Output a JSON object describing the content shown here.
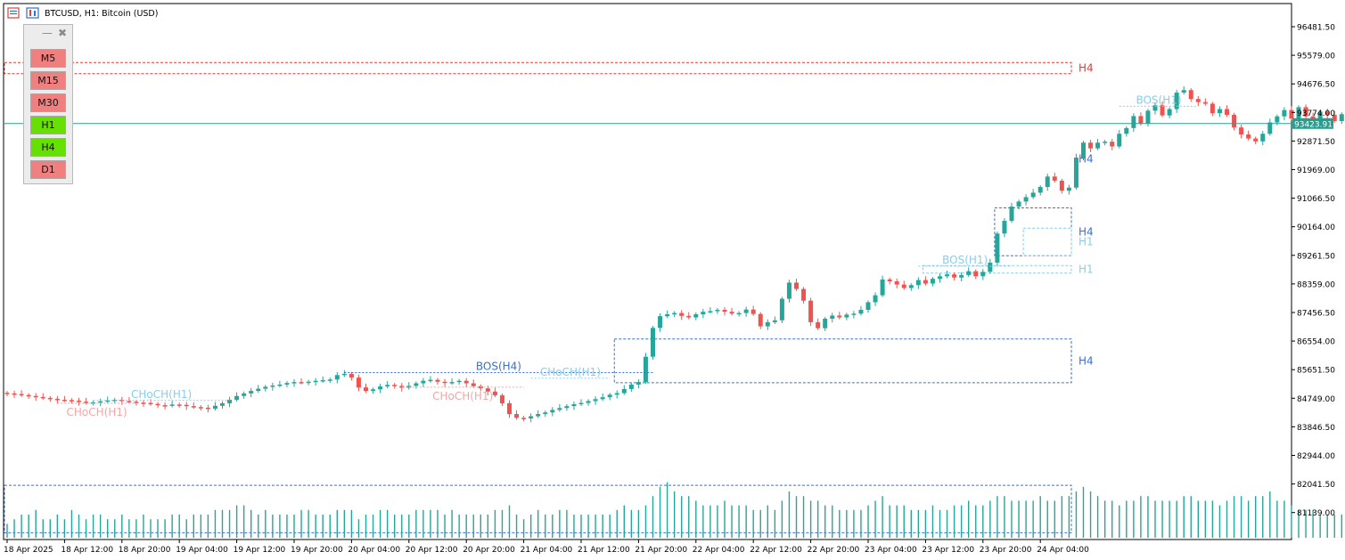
{
  "header": {
    "symbol_line": "BTCUSD, H1:  Bitcoin (USD)"
  },
  "tf_panel": {
    "minimize_glyph": "—",
    "close_glyph": "✖",
    "buttons": [
      {
        "label": "M5",
        "state": "off"
      },
      {
        "label": "M15",
        "state": "off"
      },
      {
        "label": "M30",
        "state": "off"
      },
      {
        "label": "H1",
        "state": "on"
      },
      {
        "label": "H4",
        "state": "on"
      },
      {
        "label": "D1",
        "state": "off"
      }
    ]
  },
  "colors": {
    "bull": "#26a69a",
    "bear": "#ef5350",
    "tf_on": "#66e000",
    "tf_off": "#f08080",
    "h4_zone": "#3a6fd8",
    "h1_zone": "#87ceeb",
    "supply_zone": "#e53935",
    "bid_line": "#2a9d8f",
    "choch_h1_bull": "#87ceeb",
    "choch_h1_bear": "#f4a6a6",
    "bos_h4": "#3a6fd8"
  },
  "current_price": "93423.91",
  "chart_data": {
    "type": "candlestick",
    "title": "BTCUSD, H1:  Bitcoin (USD)",
    "y_ticks": [
      "96481.50",
      "95579.00",
      "94676.50",
      "93774.00",
      "92871.50",
      "91969.00",
      "91066.50",
      "90164.00",
      "89261.50",
      "88359.00",
      "87456.50",
      "86554.00",
      "85651.50",
      "84749.00",
      "83846.50",
      "82944.00",
      "82041.50",
      "81139.00"
    ],
    "x_ticks": [
      "18 Apr 2025",
      "18 Apr 12:00",
      "18 Apr 20:00",
      "19 Apr 04:00",
      "19 Apr 12:00",
      "19 Apr 20:00",
      "20 Apr 04:00",
      "20 Apr 12:00",
      "20 Apr 20:00",
      "21 Apr 04:00",
      "21 Apr 12:00",
      "21 Apr 20:00",
      "22 Apr 04:00",
      "22 Apr 12:00",
      "22 Apr 20:00",
      "23 Apr 04:00",
      "23 Apr 12:00",
      "23 Apr 20:00",
      "24 Apr 04:00"
    ],
    "y_range": [
      80500,
      96900
    ],
    "x_step_hours": 1,
    "close_series": [
      84900,
      84880,
      84850,
      84820,
      84790,
      84760,
      84730,
      84700,
      84690,
      84670,
      84640,
      84610,
      84620,
      84650,
      84680,
      84700,
      84660,
      84640,
      84610,
      84600,
      84570,
      84530,
      84520,
      84550,
      84540,
      84500,
      84470,
      84450,
      84420,
      84510,
      84590,
      84700,
      84820,
      84900,
      84980,
      85050,
      85110,
      85150,
      85180,
      85230,
      85260,
      85250,
      85270,
      85300,
      85320,
      85340,
      85480,
      85520,
      85400,
      85090,
      84980,
      85030,
      85120,
      85170,
      85140,
      85080,
      85140,
      85220,
      85300,
      85330,
      85270,
      85230,
      85260,
      85300,
      85220,
      85130,
      85060,
      84960,
      84840,
      84590,
      84250,
      84130,
      84110,
      84180,
      84250,
      84300,
      84380,
      84440,
      84500,
      84560,
      84600,
      84660,
      84720,
      84780,
      84860,
      84910,
      85040,
      85180,
      85260,
      86060,
      86970,
      87340,
      87400,
      87440,
      87350,
      87300,
      87400,
      87480,
      87500,
      87540,
      87480,
      87420,
      87440,
      87550,
      87410,
      87020,
      87150,
      87210,
      87890,
      88400,
      88200,
      87830,
      87150,
      86960,
      87260,
      87360,
      87300,
      87390,
      87420,
      87540,
      87780,
      88000,
      88500,
      88440,
      88340,
      88230,
      88320,
      88480,
      88370,
      88520,
      88600,
      88660,
      88560,
      88640,
      88760,
      88600,
      88740,
      89030,
      89950,
      90350,
      90800,
      90960,
      91100,
      91240,
      91420,
      91750,
      91620,
      91300,
      91400,
      92350,
      92820,
      92640,
      92820,
      92850,
      92700,
      93100,
      93280,
      93660,
      93420,
      93830,
      94000,
      93680,
      93880,
      94400,
      94480,
      94200,
      94100,
      94050,
      93750,
      93880,
      93700,
      93300,
      93080,
      92950,
      92860,
      93100,
      93460,
      93650,
      93850,
      93580,
      93940,
      93650,
      93530,
      93800,
      93700,
      93500,
      93720,
      93650,
      93450,
      93520,
      93423.91
    ],
    "volume_series": [
      3,
      4,
      5,
      5,
      6,
      4,
      4,
      5,
      4,
      6,
      5,
      4,
      5,
      5,
      4,
      4,
      5,
      4,
      4,
      5,
      4,
      4,
      4,
      5,
      5,
      4,
      5,
      5,
      5,
      6,
      6,
      6,
      7,
      7,
      6,
      5,
      6,
      5,
      5,
      5,
      5,
      6,
      6,
      5,
      5,
      5,
      6,
      6,
      6,
      4,
      5,
      5,
      6,
      6,
      5,
      5,
      5,
      6,
      6,
      6,
      6,
      5,
      6,
      5,
      5,
      5,
      5,
      5,
      6,
      6,
      7,
      5,
      4,
      5,
      6,
      5,
      5,
      6,
      6,
      5,
      5,
      5,
      5,
      5,
      5,
      6,
      7,
      6,
      6,
      7,
      9,
      11,
      12,
      10,
      9,
      9,
      8,
      7,
      7,
      7,
      8,
      7,
      7,
      7,
      6,
      6,
      7,
      6,
      8,
      10,
      9,
      9,
      8,
      8,
      7,
      7,
      6,
      6,
      6,
      6,
      7,
      8,
      9,
      7,
      7,
      7,
      6,
      6,
      6,
      7,
      6,
      6,
      7,
      7,
      8,
      7,
      7,
      8,
      9,
      9,
      8,
      8,
      8,
      8,
      9,
      8,
      8,
      9,
      9,
      10,
      11,
      10,
      9,
      8,
      8,
      7,
      8,
      8,
      9,
      9,
      8,
      8,
      8,
      8,
      9,
      9,
      8,
      8,
      8,
      7,
      8,
      9,
      9,
      8,
      9,
      9,
      10,
      8,
      8,
      7,
      6,
      6,
      6,
      5,
      5,
      5,
      5,
      4,
      4,
      5,
      4
    ],
    "zones": [
      {
        "label": "H4",
        "kind": "supply",
        "tf": "H4",
        "from": 95350,
        "to": 95000,
        "start_index": 0
      },
      {
        "label": "H4",
        "kind": "demand",
        "tf": "H4",
        "from": 92710,
        "to": 91900,
        "start_index": 149
      },
      {
        "label": "",
        "kind": "demand",
        "tf": "H1",
        "from": 91900,
        "to": 91800,
        "start_index": 149
      },
      {
        "label": "H4",
        "kind": "demand",
        "tf": "H4",
        "from": 90760,
        "to": 89250,
        "start_index": 138
      },
      {
        "label": "H1",
        "kind": "demand",
        "tf": "H1",
        "from": 90120,
        "to": 89250,
        "start_index": 142
      },
      {
        "label": "H1",
        "kind": "demand",
        "tf": "H1",
        "from": 88940,
        "to": 88700,
        "start_index": 128
      },
      {
        "label": "H4",
        "kind": "demand",
        "tf": "H4",
        "from": 86620,
        "to": 85240,
        "start_index": 85
      },
      {
        "label": "",
        "kind": "demand",
        "tf": "H4",
        "from": 82000,
        "to": 80500,
        "start_index": 0
      }
    ],
    "annotations": [
      {
        "text": "CHoCH(H1)",
        "tf": "H1",
        "dir": "bull",
        "level": 84680,
        "from_index": 12,
        "to_index": 31
      },
      {
        "text": "CHoCH(H1)",
        "tf": "H1",
        "dir": "bear",
        "level": 84590,
        "from_index": 7,
        "to_index": 18,
        "below": true
      },
      {
        "text": "BOS(H4)",
        "tf": "H4",
        "dir": "bull",
        "level": 85560,
        "from_index": 47,
        "to_index": 90
      },
      {
        "text": "CHoCH(H1)",
        "tf": "H1",
        "dir": "bull",
        "level": 85380,
        "from_index": 73,
        "to_index": 84
      },
      {
        "text": "CHoCH(H1)",
        "tf": "H1",
        "dir": "bear",
        "level": 85100,
        "from_index": 55,
        "to_index": 72,
        "below": true
      },
      {
        "text": "BOS(H1)",
        "tf": "H1",
        "dir": "bull",
        "level": 88920,
        "from_index": 127,
        "to_index": 140
      },
      {
        "text": "BOS(H1)",
        "tf": "H1",
        "dir": "bull",
        "level": 93970,
        "from_index": 155,
        "to_index": 166
      }
    ]
  }
}
